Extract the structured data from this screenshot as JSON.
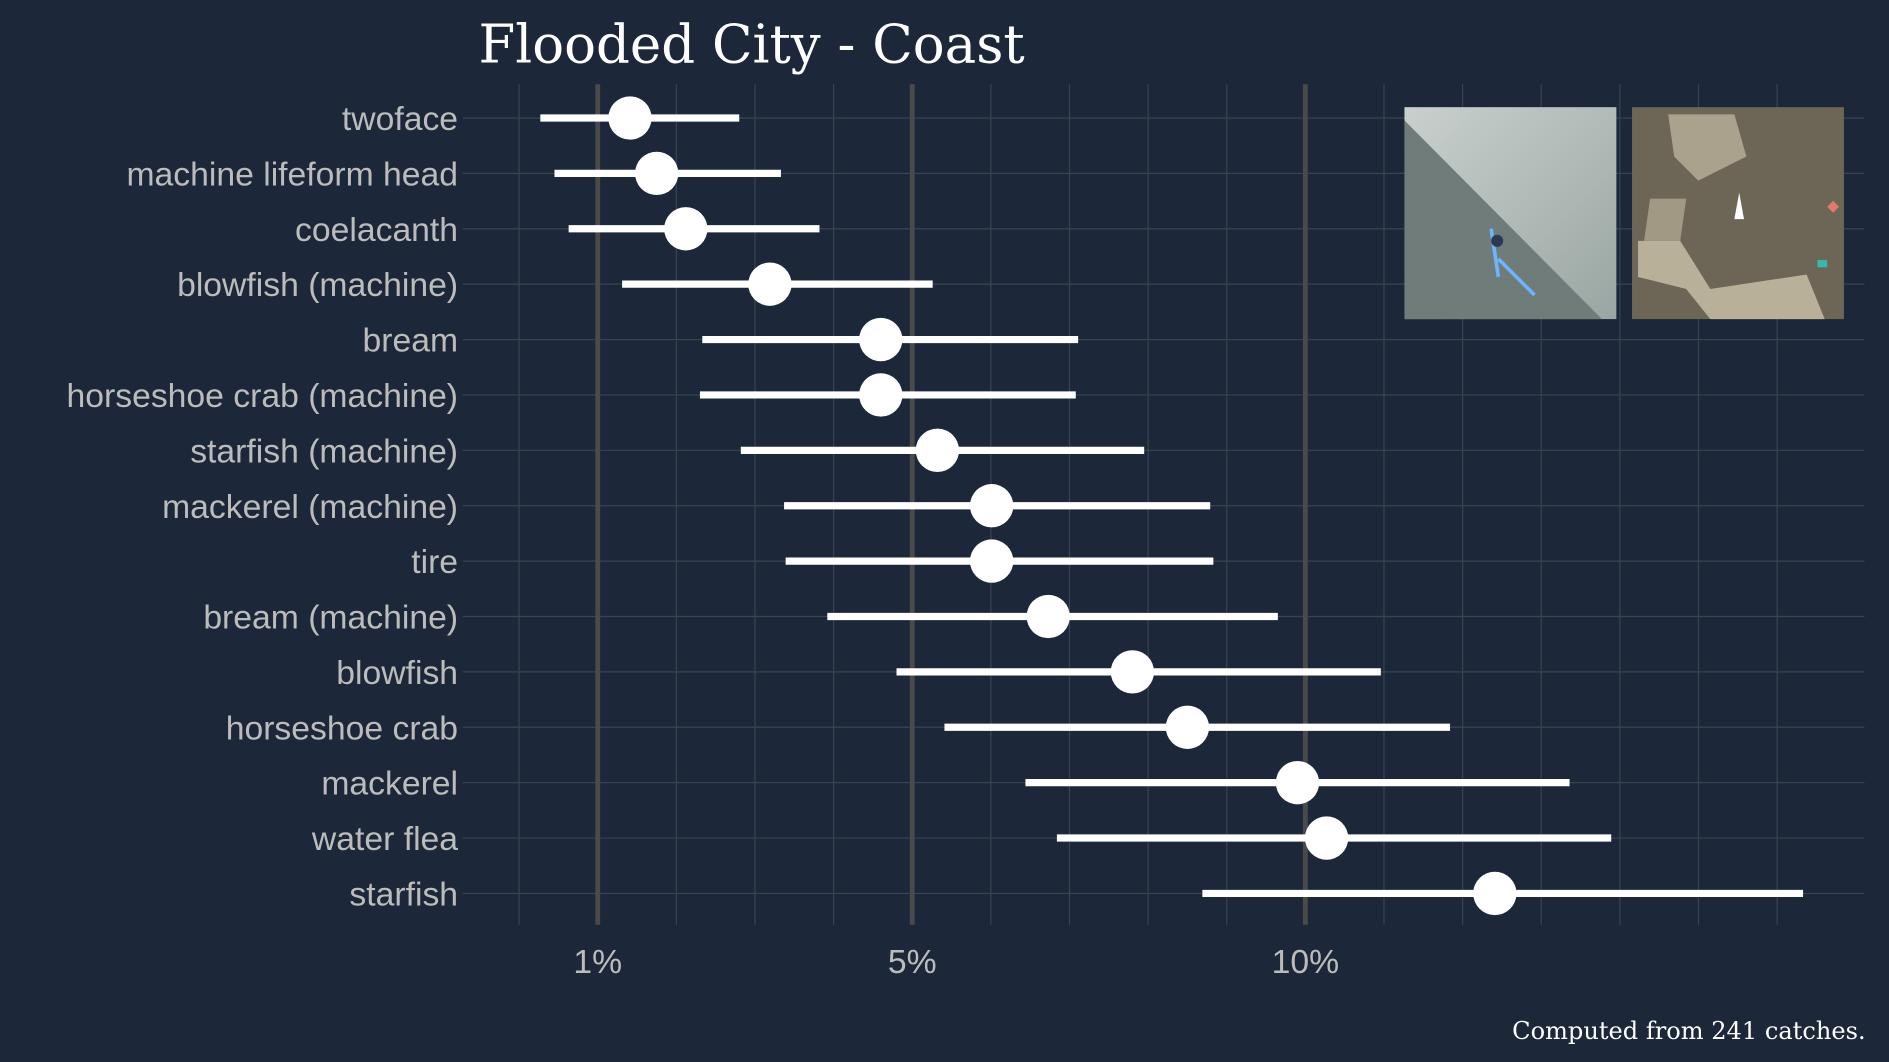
{
  "chart_data": {
    "type": "scatter",
    "title": "Flooded City - Coast",
    "caption": "Computed from 241 catches.",
    "xlabel": "",
    "ylabel": "",
    "xlim": [
      0,
      17
    ],
    "x_ticks": [
      {
        "value": 1,
        "label": "1%"
      },
      {
        "value": 5,
        "label": "5%"
      },
      {
        "value": 10,
        "label": "10%"
      },
      {
        "value": 15,
        "label": ""
      }
    ],
    "categories": [
      "twoface",
      "machine lifeform head",
      "coelacanth",
      "blowfish (machine)",
      "bream",
      "horseshoe crab (machine)",
      "starfish (machine)",
      "mackerel (machine)",
      "tire",
      "bream (machine)",
      "blowfish",
      "horseshoe crab",
      "mackerel",
      "water flea",
      "starfish"
    ],
    "values": [
      1.41,
      1.75,
      2.12,
      3.19,
      4.6,
      4.6,
      5.32,
      6.01,
      6.01,
      6.73,
      7.8,
      8.5,
      9.9,
      10.27,
      12.41
    ],
    "low": [
      0.27,
      0.45,
      0.63,
      1.31,
      2.33,
      2.3,
      2.82,
      3.37,
      3.39,
      3.92,
      4.8,
      5.41,
      6.44,
      6.84,
      8.69
    ],
    "high": [
      2.8,
      3.33,
      3.82,
      5.26,
      7.11,
      7.08,
      7.95,
      8.79,
      8.83,
      9.65,
      10.96,
      11.84,
      13.36,
      13.89,
      16.33
    ],
    "grid": true,
    "colors": {
      "background": "#1c2839",
      "point": "#ffffff",
      "major_grid": "#4a4a4a",
      "minor_grid": "#3a4350",
      "label": "#bcbcbc"
    }
  }
}
